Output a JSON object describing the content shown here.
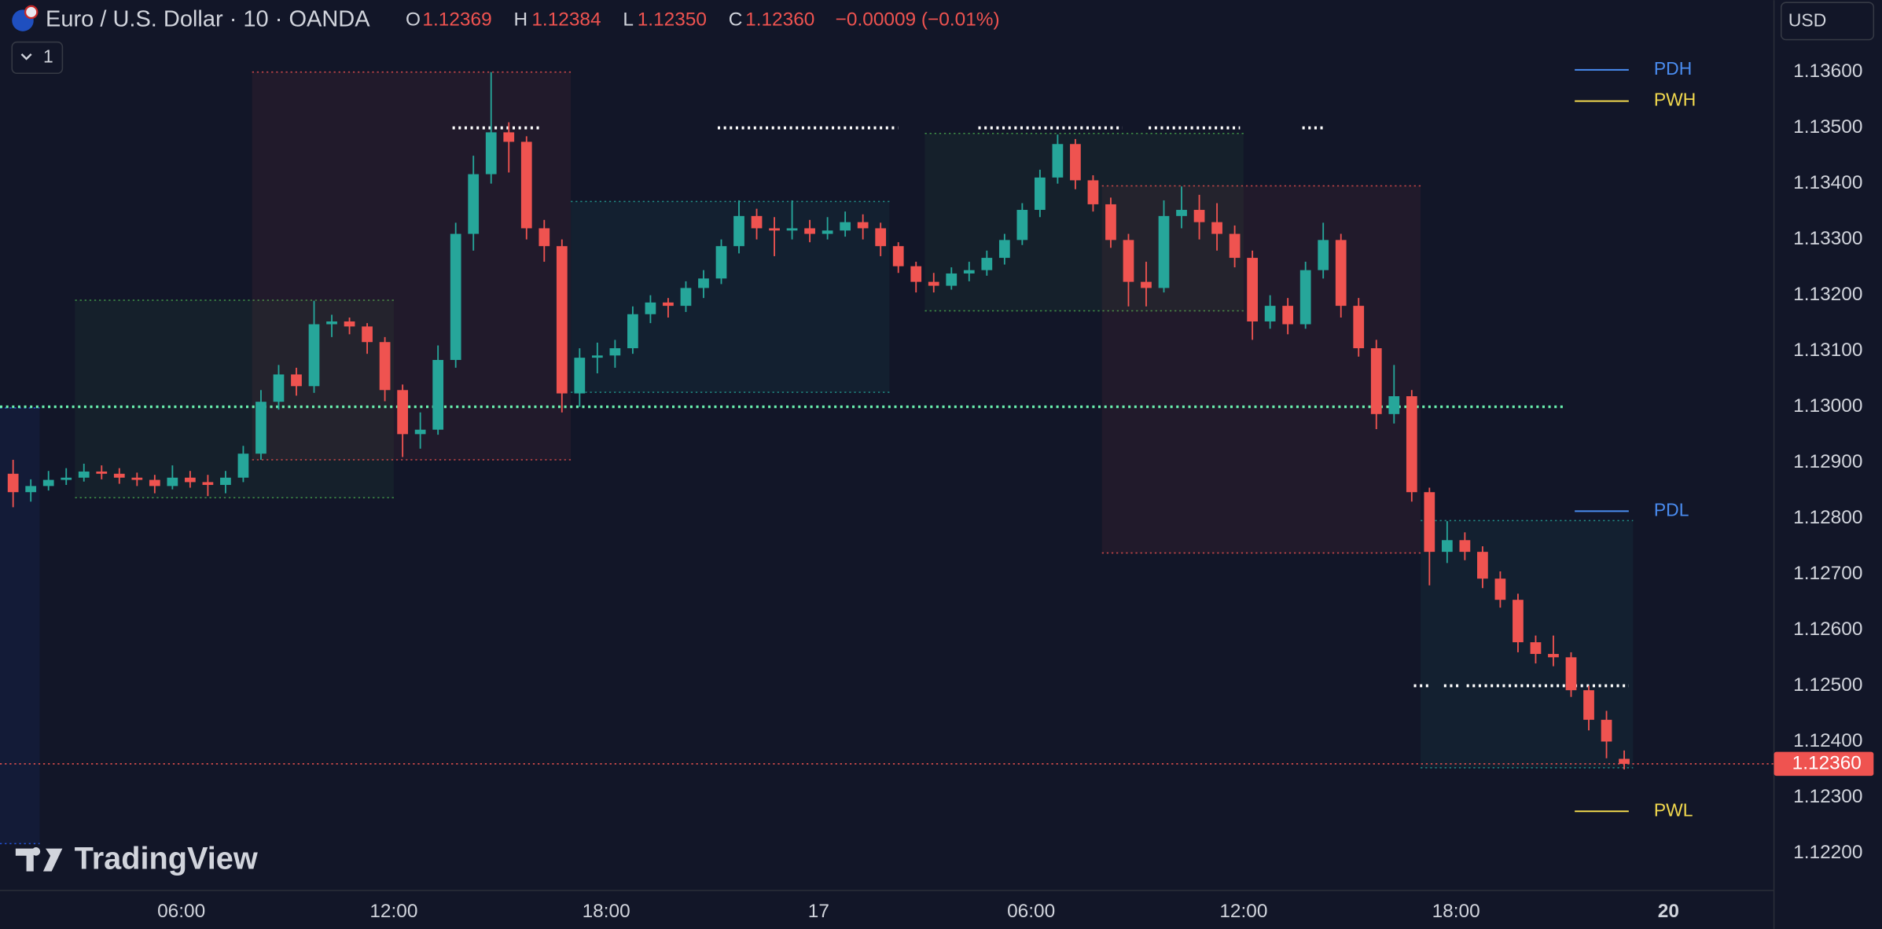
{
  "chart_data": {
    "type": "candlestick",
    "header": {
      "title": "Euro / U.S. Dollar · 10 · OANDA",
      "o_label": "O",
      "o_value": "1.12369",
      "h_label": "H",
      "h_value": "1.12384",
      "l_label": "L",
      "l_value": "1.12350",
      "c_label": "C",
      "c_value": "1.12360",
      "change": "−0.00009 (−0.01%)"
    },
    "currency": "USD",
    "pane_button": "1",
    "watermark": "TradingView",
    "up_color": "#26a69a",
    "down_color": "#ef5350",
    "grid": false,
    "xlim": [
      0.88,
      50.98
    ],
    "ylim": [
      1.12133,
      1.13729
    ],
    "xticks": [
      {
        "value": 6,
        "label": "06:00"
      },
      {
        "value": 12,
        "label": "12:00"
      },
      {
        "value": 18,
        "label": "18:00"
      },
      {
        "value": 24,
        "label": "17"
      },
      {
        "value": 30,
        "label": "06:00"
      },
      {
        "value": 36,
        "label": "12:00"
      },
      {
        "value": 42,
        "label": "18:00"
      },
      {
        "value": 48,
        "label": "20"
      }
    ],
    "yticks": [
      {
        "value": 1.136,
        "label": "1.13600"
      },
      {
        "value": 1.135,
        "label": "1.13500"
      },
      {
        "value": 1.134,
        "label": "1.13400"
      },
      {
        "value": 1.133,
        "label": "1.13300"
      },
      {
        "value": 1.132,
        "label": "1.13200"
      },
      {
        "value": 1.131,
        "label": "1.13100"
      },
      {
        "value": 1.13,
        "label": "1.13000"
      },
      {
        "value": 1.129,
        "label": "1.12900"
      },
      {
        "value": 1.128,
        "label": "1.12800"
      },
      {
        "value": 1.127,
        "label": "1.12700"
      },
      {
        "value": 1.126,
        "label": "1.12600"
      },
      {
        "value": 1.125,
        "label": "1.12500"
      },
      {
        "value": 1.124,
        "label": "1.12400"
      },
      {
        "value": 1.123,
        "label": "1.12300"
      },
      {
        "value": 1.122,
        "label": "1.12200"
      }
    ],
    "x": [
      1.25,
      1.75,
      2.25,
      2.75,
      3.25,
      3.75,
      4.25,
      4.75,
      5.25,
      5.75,
      6.25,
      6.75,
      7.25,
      7.75,
      8.25,
      8.75,
      9.25,
      9.75,
      10.25,
      10.75,
      11.25,
      11.75,
      12.25,
      12.75,
      13.25,
      13.75,
      14.25,
      14.75,
      15.25,
      15.75,
      16.25,
      16.75,
      17.25,
      17.75,
      18.25,
      18.75,
      19.25,
      19.75,
      20.25,
      20.75,
      21.25,
      21.75,
      22.25,
      22.75,
      23.25,
      23.75,
      24.25,
      24.75,
      25.25,
      25.75,
      26.25,
      26.75,
      27.25,
      27.75,
      28.25,
      28.75,
      29.25,
      29.75,
      30.25,
      30.75,
      31.25,
      31.75,
      32.25,
      32.75,
      33.25,
      33.75,
      34.25,
      34.75,
      35.25,
      35.75,
      36.25,
      36.75,
      37.25,
      37.75,
      38.25,
      38.75,
      39.25,
      39.75,
      40.25,
      40.75,
      41.25,
      41.75,
      42.25,
      42.75,
      43.25,
      43.75,
      44.25,
      44.75,
      45.25,
      45.75,
      46.25,
      46.75
    ],
    "candles": [
      [
        1.1288,
        1.12905,
        1.1282,
        1.12847
      ],
      [
        1.12847,
        1.1287,
        1.1283,
        1.12858
      ],
      [
        1.12858,
        1.12885,
        1.1285,
        1.12869
      ],
      [
        1.12869,
        1.1289,
        1.1286,
        1.12873
      ],
      [
        1.12873,
        1.12898,
        1.12866,
        1.12884
      ],
      [
        1.12884,
        1.12895,
        1.1287,
        1.1288
      ],
      [
        1.1288,
        1.1289,
        1.12862,
        1.12873
      ],
      [
        1.12873,
        1.12882,
        1.12858,
        1.12869
      ],
      [
        1.12869,
        1.12878,
        1.12845,
        1.12858
      ],
      [
        1.12858,
        1.12895,
        1.12852,
        1.12873
      ],
      [
        1.12873,
        1.12885,
        1.12855,
        1.12865
      ],
      [
        1.12865,
        1.12878,
        1.1284,
        1.1286
      ],
      [
        1.1286,
        1.12885,
        1.12845,
        1.12873
      ],
      [
        1.12873,
        1.1293,
        1.12865,
        1.12916
      ],
      [
        1.12916,
        1.1303,
        1.12905,
        1.13009
      ],
      [
        1.13009,
        1.13075,
        1.12995,
        1.13058
      ],
      [
        1.13058,
        1.1307,
        1.1302,
        1.13037
      ],
      [
        1.13037,
        1.1319,
        1.13025,
        1.13148
      ],
      [
        1.13148,
        1.13165,
        1.13125,
        1.13153
      ],
      [
        1.13153,
        1.1316,
        1.1313,
        1.13144
      ],
      [
        1.13144,
        1.1315,
        1.13095,
        1.13116
      ],
      [
        1.13116,
        1.13125,
        1.1301,
        1.1303
      ],
      [
        1.1303,
        1.1304,
        1.1291,
        1.12951
      ],
      [
        1.12951,
        1.1299,
        1.12925,
        1.12959
      ],
      [
        1.12959,
        1.1311,
        1.1295,
        1.13084
      ],
      [
        1.13084,
        1.1333,
        1.1307,
        1.1331
      ],
      [
        1.1331,
        1.1345,
        1.1328,
        1.13417
      ],
      [
        1.13417,
        1.136,
        1.134,
        1.13492
      ],
      [
        1.13492,
        1.1351,
        1.1342,
        1.13475
      ],
      [
        1.13475,
        1.13485,
        1.133,
        1.1332
      ],
      [
        1.1332,
        1.13335,
        1.1326,
        1.13288
      ],
      [
        1.13288,
        1.133,
        1.1299,
        1.13024
      ],
      [
        1.13024,
        1.13105,
        1.13,
        1.13088
      ],
      [
        1.13088,
        1.13115,
        1.1306,
        1.13092
      ],
      [
        1.13092,
        1.1312,
        1.1307,
        1.13105
      ],
      [
        1.13105,
        1.1318,
        1.13095,
        1.13166
      ],
      [
        1.13166,
        1.132,
        1.1315,
        1.13187
      ],
      [
        1.13187,
        1.13195,
        1.1316,
        1.13181
      ],
      [
        1.13181,
        1.13225,
        1.1317,
        1.13213
      ],
      [
        1.13213,
        1.13245,
        1.13195,
        1.1323
      ],
      [
        1.1323,
        1.133,
        1.1322,
        1.13288
      ],
      [
        1.13288,
        1.1337,
        1.13275,
        1.13342
      ],
      [
        1.13342,
        1.13355,
        1.133,
        1.1332
      ],
      [
        1.1332,
        1.1334,
        1.1327,
        1.13316
      ],
      [
        1.13316,
        1.1337,
        1.133,
        1.1332
      ],
      [
        1.1332,
        1.13335,
        1.13295,
        1.1331
      ],
      [
        1.1331,
        1.1334,
        1.133,
        1.13316
      ],
      [
        1.13316,
        1.1335,
        1.13305,
        1.13331
      ],
      [
        1.13331,
        1.13345,
        1.133,
        1.1332
      ],
      [
        1.1332,
        1.1333,
        1.1327,
        1.13288
      ],
      [
        1.13288,
        1.13295,
        1.1324,
        1.13252
      ],
      [
        1.13252,
        1.1326,
        1.13205,
        1.13224
      ],
      [
        1.13224,
        1.1324,
        1.13205,
        1.13217
      ],
      [
        1.13217,
        1.1325,
        1.1321,
        1.13239
      ],
      [
        1.13239,
        1.1326,
        1.13225,
        1.13245
      ],
      [
        1.13245,
        1.1328,
        1.13235,
        1.13267
      ],
      [
        1.13267,
        1.1331,
        1.13255,
        1.13299
      ],
      [
        1.13299,
        1.13365,
        1.1329,
        1.13353
      ],
      [
        1.13353,
        1.13425,
        1.1334,
        1.13411
      ],
      [
        1.13411,
        1.13488,
        1.134,
        1.13471
      ],
      [
        1.13471,
        1.1348,
        1.1339,
        1.13406
      ],
      [
        1.13406,
        1.13415,
        1.1335,
        1.13363
      ],
      [
        1.13363,
        1.13375,
        1.13285,
        1.13299
      ],
      [
        1.13299,
        1.1331,
        1.1318,
        1.13224
      ],
      [
        1.13224,
        1.1326,
        1.1318,
        1.13213
      ],
      [
        1.13213,
        1.1337,
        1.13205,
        1.13342
      ],
      [
        1.13342,
        1.13395,
        1.1332,
        1.13353
      ],
      [
        1.13353,
        1.1338,
        1.133,
        1.13331
      ],
      [
        1.13331,
        1.13365,
        1.1328,
        1.1331
      ],
      [
        1.1331,
        1.13325,
        1.1325,
        1.13267
      ],
      [
        1.13267,
        1.1328,
        1.1312,
        1.13153
      ],
      [
        1.13153,
        1.132,
        1.1314,
        1.13181
      ],
      [
        1.13181,
        1.13195,
        1.1313,
        1.13148
      ],
      [
        1.13148,
        1.1326,
        1.1314,
        1.13245
      ],
      [
        1.13245,
        1.1333,
        1.1323,
        1.13299
      ],
      [
        1.13299,
        1.1331,
        1.1316,
        1.13181
      ],
      [
        1.13181,
        1.13195,
        1.1309,
        1.13105
      ],
      [
        1.13105,
        1.1312,
        1.1296,
        1.12987
      ],
      [
        1.12987,
        1.13075,
        1.1297,
        1.13019
      ],
      [
        1.13019,
        1.1303,
        1.1283,
        1.12847
      ],
      [
        1.12847,
        1.12855,
        1.1268,
        1.1274
      ],
      [
        1.1274,
        1.12795,
        1.1272,
        1.12761
      ],
      [
        1.12761,
        1.12775,
        1.12725,
        1.1274
      ],
      [
        1.1274,
        1.1275,
        1.12675,
        1.12692
      ],
      [
        1.12692,
        1.12705,
        1.1264,
        1.12654
      ],
      [
        1.12654,
        1.12665,
        1.1256,
        1.12578
      ],
      [
        1.12578,
        1.1259,
        1.1254,
        1.12557
      ],
      [
        1.12557,
        1.1259,
        1.12535,
        1.12551
      ],
      [
        1.12551,
        1.1256,
        1.1248,
        1.12492
      ],
      [
        1.12492,
        1.125,
        1.1242,
        1.12439
      ],
      [
        1.12439,
        1.12455,
        1.1237,
        1.124
      ],
      [
        1.12369,
        1.12384,
        1.1235,
        1.1236
      ]
    ],
    "zones": [
      {
        "x": [
          0.88,
          2.0
        ],
        "range": [
          1.12217,
          1.12998
        ],
        "color": "#2962ff"
      },
      {
        "x": [
          3.0,
          12.0
        ],
        "range": [
          1.12837,
          1.13191
        ],
        "color": "#4caf50"
      },
      {
        "x": [
          8.0,
          17.0
        ],
        "range": [
          1.12905,
          1.136
        ],
        "color": "#ef5350"
      },
      {
        "x": [
          17.0,
          26.0
        ],
        "range": [
          1.13026,
          1.13368
        ],
        "color": "#26a69a"
      },
      {
        "x": [
          27.0,
          36.0
        ],
        "range": [
          1.13172,
          1.1349
        ],
        "color": "#4caf50"
      },
      {
        "x": [
          32.0,
          41.0
        ],
        "range": [
          1.12738,
          1.13396
        ],
        "color": "#ef5350"
      },
      {
        "x": [
          41.0,
          47.0
        ],
        "range": [
          1.12353,
          1.12796
        ],
        "color": "#26a69a"
      }
    ],
    "midline": {
      "value": 1.13,
      "x_end": 45.05,
      "color": "#69f0ae"
    },
    "white_levels": [
      {
        "value": 1.135,
        "segments": [
          [
            13.66,
            16.2
          ],
          [
            21.15,
            26.24
          ],
          [
            28.51,
            32.58
          ],
          [
            33.32,
            35.9
          ],
          [
            37.66,
            38.24
          ]
        ]
      },
      {
        "value": 1.125,
        "segments": [
          [
            40.81,
            41.22
          ],
          [
            41.66,
            42.07
          ],
          [
            42.3,
            46.88
          ]
        ]
      }
    ],
    "key_levels": [
      {
        "name": "PDH",
        "value": 1.13604,
        "color": "#4a8cf0"
      },
      {
        "name": "PWH",
        "value": 1.13548,
        "color": "#f2d94e"
      },
      {
        "name": "PDL",
        "value": 1.12813,
        "color": "#4a8cf0"
      },
      {
        "name": "PWL",
        "value": 1.12275,
        "color": "#f2d94e"
      }
    ],
    "price_tag": {
      "value": 1.1236,
      "label": "1.12360",
      "color": "#ef5350"
    }
  }
}
